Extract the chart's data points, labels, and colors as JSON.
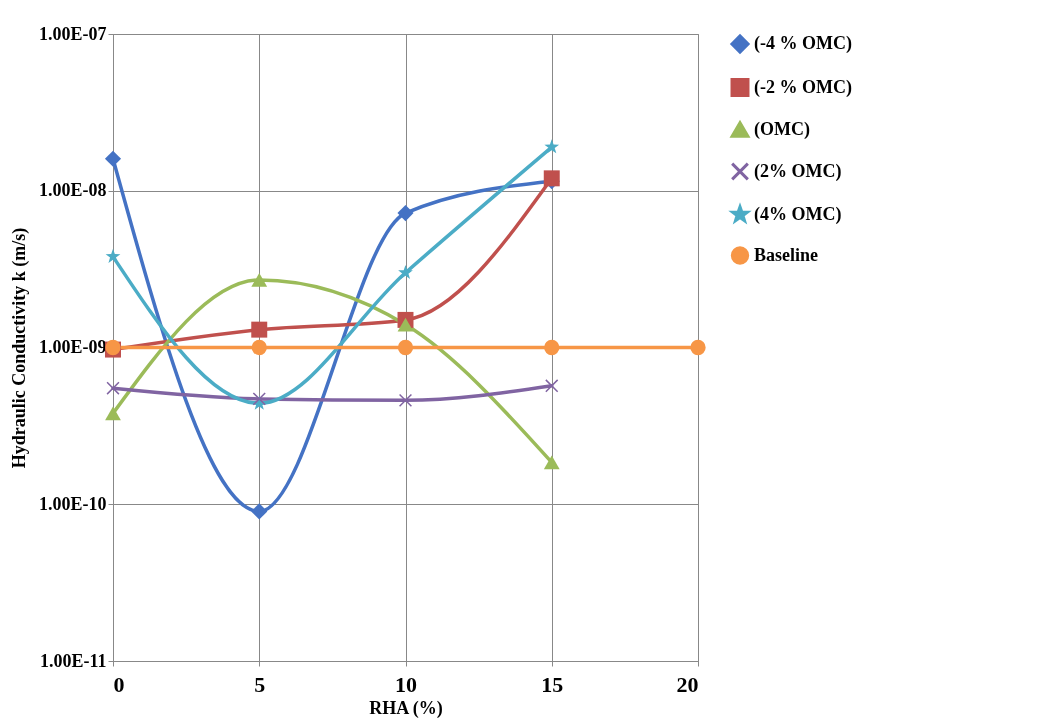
{
  "chart_data": {
    "type": "line",
    "xlabel": "RHA (%)",
    "ylabel": "Hydraulic Conductivity k (m/s)",
    "x": [
      0,
      5,
      10,
      15
    ],
    "log": true,
    "grid": true,
    "legend": "right",
    "line_style": "solid",
    "xlim": [
      0,
      20
    ],
    "xticks": [
      0,
      5,
      10,
      15,
      20
    ],
    "ylim": [
      1e-11,
      1e-07
    ],
    "yticks": [
      {
        "value": 1e-11,
        "label": "1.00E-11"
      },
      {
        "value": 1e-10,
        "label": "1.00E-10"
      },
      {
        "value": 1e-09,
        "label": "1.00E-09"
      },
      {
        "value": 1e-08,
        "label": "1.00E-08"
      },
      {
        "value": 1e-07,
        "label": "1.00E-07"
      }
    ],
    "series": [
      {
        "name": "(-4 % OMC)",
        "color": "#4472c4",
        "marker": "diamond",
        "values": [
          1.6e-08,
          9e-11,
          7.2e-09,
          1.15e-08
        ]
      },
      {
        "name": "(-2 % OMC)",
        "color": "#c0504d",
        "marker": "square",
        "values": [
          9.7e-10,
          1.3e-09,
          1.5e-09,
          1.2e-08
        ]
      },
      {
        "name": "(OMC)",
        "color": "#9bbb59",
        "marker": "triangle",
        "values": [
          3.8e-10,
          2.7e-09,
          1.4e-09,
          1.85e-10
        ]
      },
      {
        "name": "(2% OMC)",
        "color": "#8064a2",
        "marker": "cross",
        "values": [
          5.5e-10,
          4.7e-10,
          4.6e-10,
          5.7e-10
        ]
      },
      {
        "name": "(4% OMC)",
        "color": "#4bacc6",
        "marker": "star",
        "values": [
          3.8e-09,
          4.4e-10,
          3e-09,
          1.9e-08
        ]
      },
      {
        "name": "Baseline",
        "color": "#f79646",
        "marker": "circle",
        "x": [
          0,
          5,
          10,
          15,
          20
        ],
        "values": [
          1e-09,
          1e-09,
          1e-09,
          1e-09,
          1e-09
        ]
      }
    ]
  }
}
